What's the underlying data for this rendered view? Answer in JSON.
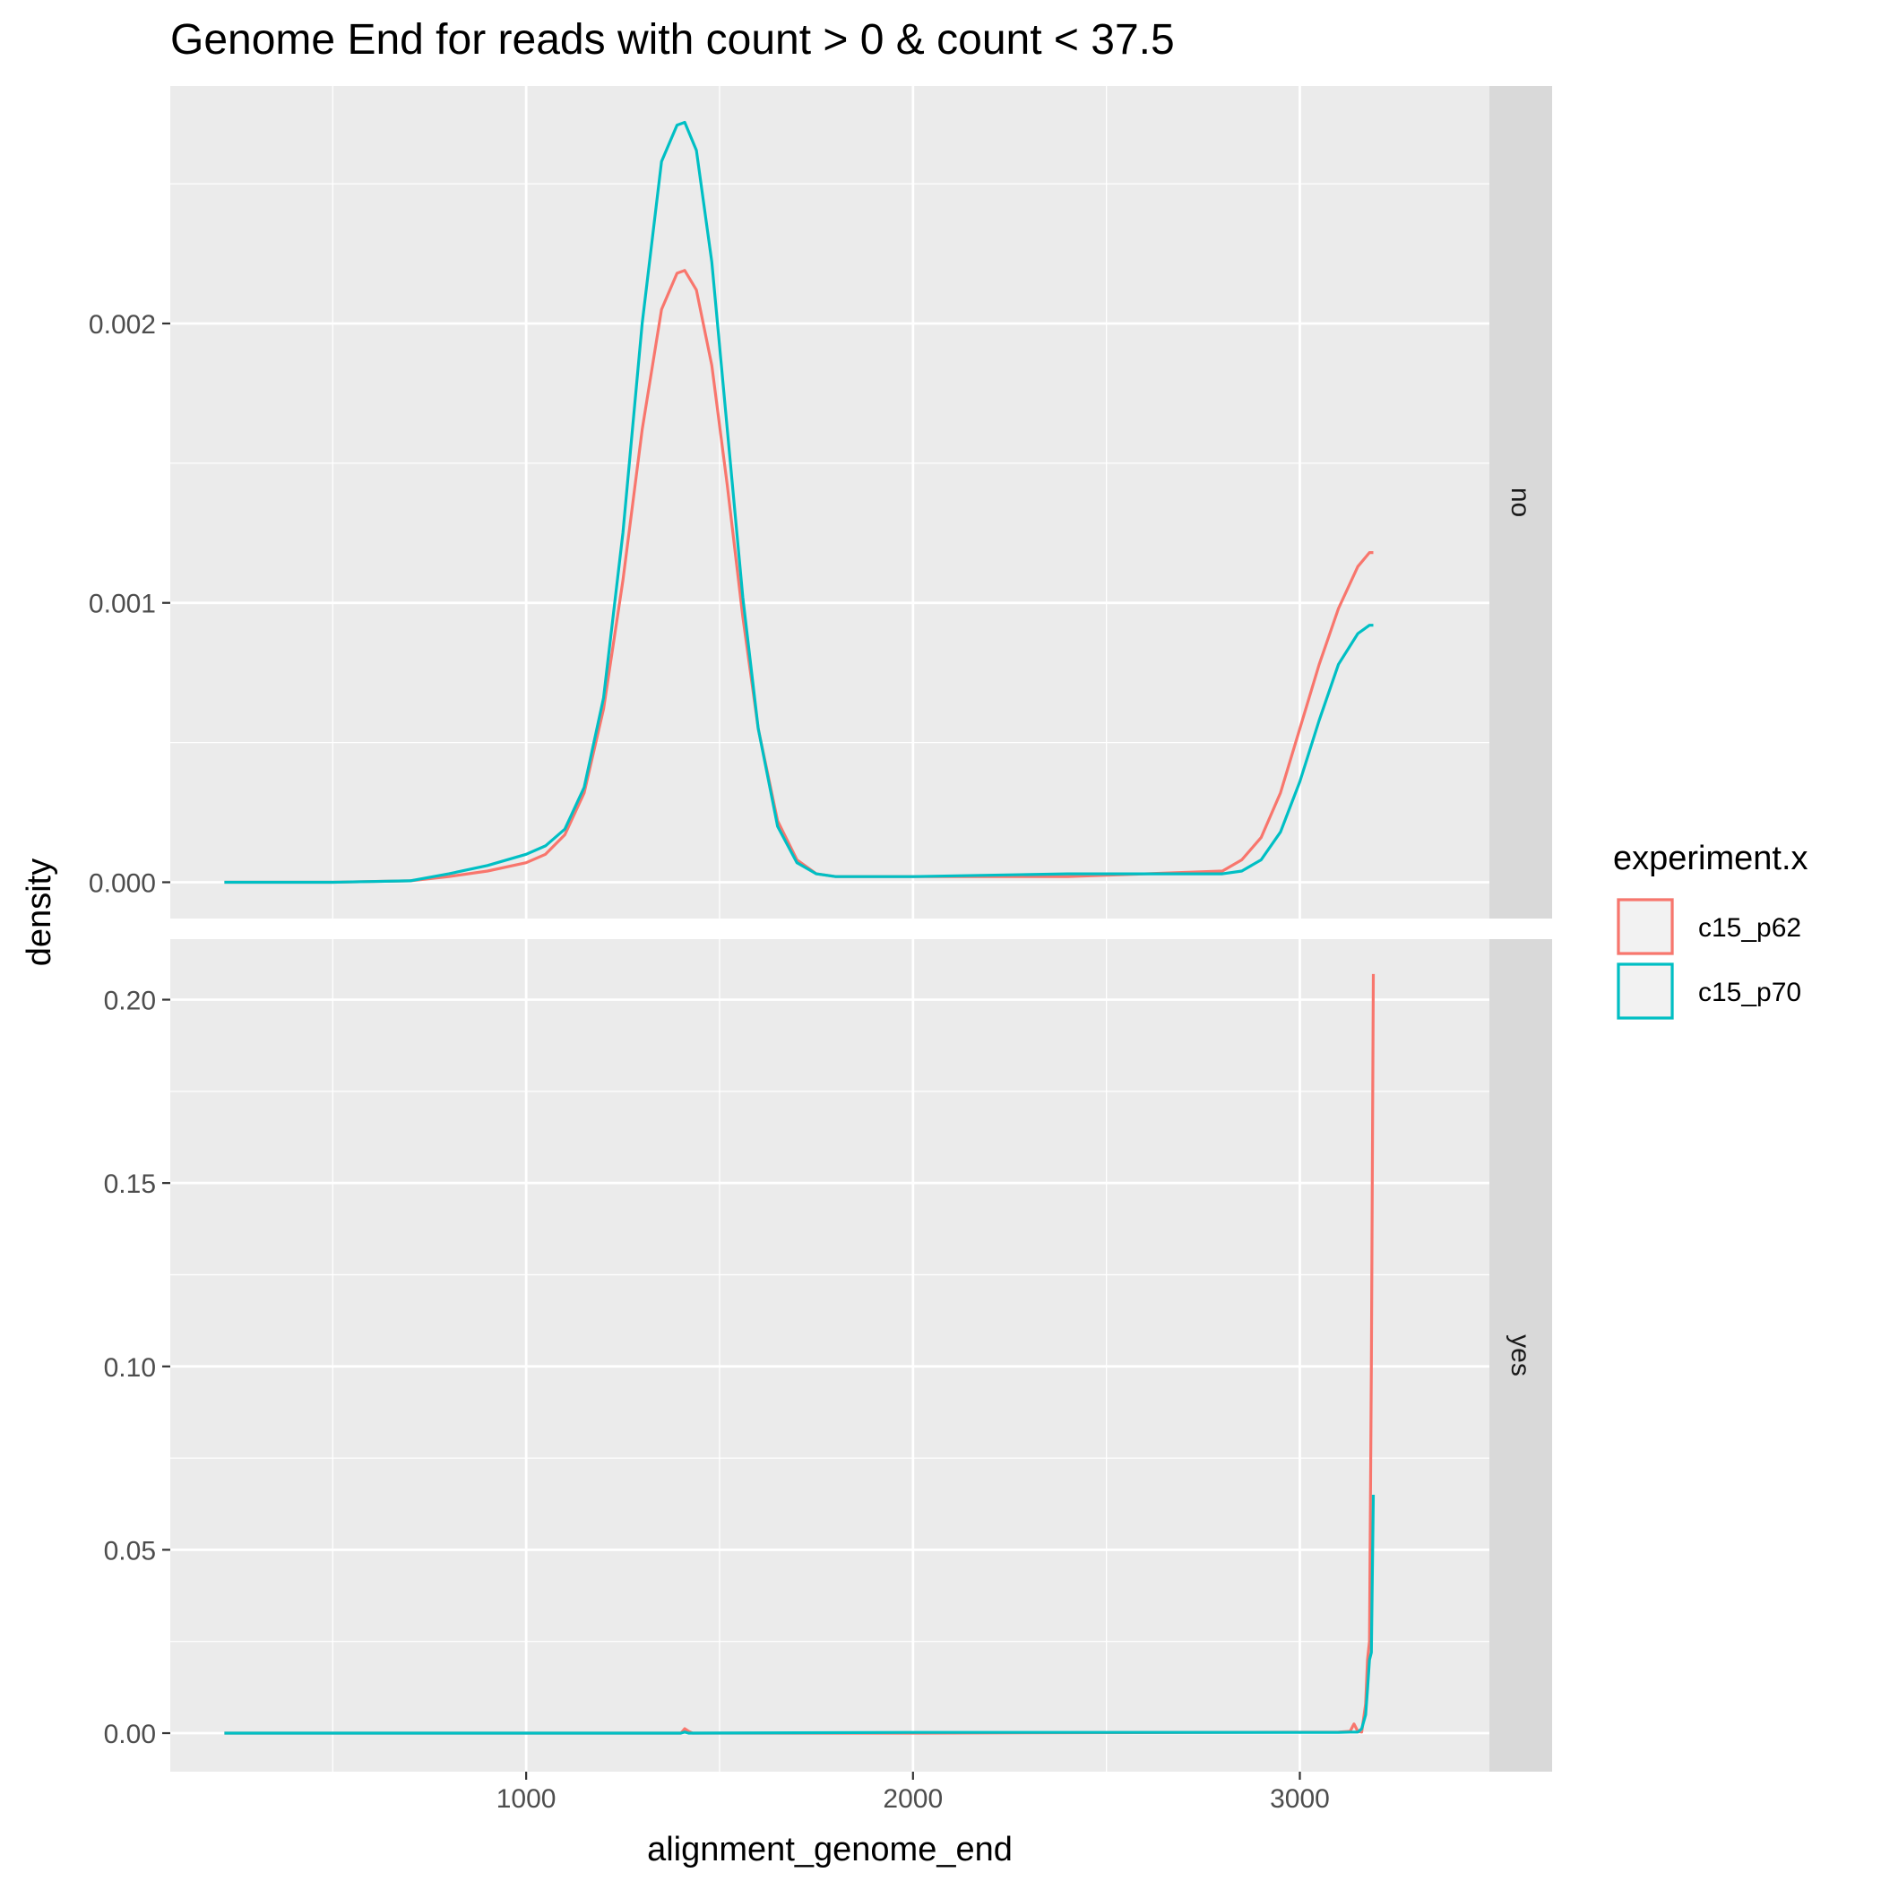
{
  "chart_data": {
    "type": "line",
    "title": "Genome End for reads with count > 0 & count < 37.5",
    "xlabel": "alignment_genome_end",
    "ylabel": "density",
    "xlim": [
      80,
      3490
    ],
    "x_ticks": [
      1000,
      2000,
      3000
    ],
    "x_tick_labels": [
      "1000",
      "2000",
      "3000"
    ],
    "grid": true,
    "legend": {
      "title": "experiment.x",
      "position": "right",
      "entries": [
        {
          "name": "c15_p62",
          "color": "#F8766D"
        },
        {
          "name": "c15_p70",
          "color": "#00BFC4"
        }
      ]
    },
    "panels": [
      {
        "facet": "no",
        "ylim": [
          -0.00013,
          0.00285
        ],
        "y_ticks": [
          0,
          0.001,
          0.002
        ],
        "y_tick_labels": [
          "0.000",
          "0.001",
          "0.002"
        ],
        "series": [
          {
            "name": "c15_p62",
            "color": "#F8766D",
            "x": [
              220,
              500,
              700,
              800,
              900,
              1000,
              1050,
              1100,
              1150,
              1200,
              1250,
              1300,
              1350,
              1390,
              1410,
              1440,
              1480,
              1520,
              1560,
              1600,
              1650,
              1700,
              1750,
              1800,
              2000,
              2400,
              2800,
              2850,
              2900,
              2950,
              3000,
              3050,
              3100,
              3150,
              3180,
              3190
            ],
            "y": [
              0,
              0,
              5e-06,
              2e-05,
              4e-05,
              7e-05,
              0.0001,
              0.00017,
              0.00032,
              0.00062,
              0.00108,
              0.00162,
              0.00205,
              0.00218,
              0.00219,
              0.00212,
              0.00185,
              0.00142,
              0.00095,
              0.00055,
              0.00022,
              8e-05,
              3e-05,
              2e-05,
              2e-05,
              2e-05,
              4e-05,
              8e-05,
              0.00016,
              0.00032,
              0.00055,
              0.00078,
              0.00098,
              0.00113,
              0.00118,
              0.00118
            ]
          },
          {
            "name": "c15_p70",
            "color": "#00BFC4",
            "x": [
              220,
              500,
              700,
              800,
              900,
              1000,
              1050,
              1100,
              1150,
              1200,
              1250,
              1300,
              1350,
              1390,
              1410,
              1440,
              1480,
              1520,
              1560,
              1600,
              1650,
              1700,
              1750,
              1800,
              2000,
              2400,
              2800,
              2850,
              2900,
              2950,
              3000,
              3050,
              3100,
              3150,
              3180,
              3190
            ],
            "y": [
              0,
              0,
              5e-06,
              3e-05,
              6e-05,
              0.0001,
              0.00013,
              0.00019,
              0.00034,
              0.00066,
              0.00125,
              0.002,
              0.00258,
              0.00271,
              0.00272,
              0.00262,
              0.00222,
              0.00162,
              0.00102,
              0.00055,
              0.0002,
              7e-05,
              3e-05,
              2e-05,
              2e-05,
              3e-05,
              3e-05,
              4e-05,
              8e-05,
              0.00018,
              0.00036,
              0.00058,
              0.00078,
              0.00089,
              0.00092,
              0.00092
            ]
          }
        ]
      },
      {
        "facet": "yes",
        "ylim": [
          -0.0105,
          0.2165
        ],
        "y_ticks": [
          0,
          0.05,
          0.1,
          0.15,
          0.2
        ],
        "y_tick_labels": [
          "0.00",
          "0.05",
          "0.10",
          "0.15",
          "0.20"
        ],
        "series": [
          {
            "name": "c15_p62",
            "color": "#F8766D",
            "x": [
              220,
              1400,
              1410,
              1420,
              1430,
              2000,
              3100,
              3130,
              3140,
              3150,
              3160,
              3170,
              3175,
              3180,
              3185,
              3190
            ],
            "y": [
              0,
              0,
              0.0012,
              0.0005,
              0,
              0,
              0.0003,
              0.0005,
              0.0025,
              0.0005,
              0.0003,
              0.008,
              0.02,
              0.025,
              0.1,
              0.207
            ]
          },
          {
            "name": "c15_p70",
            "color": "#00BFC4",
            "x": [
              220,
              1400,
              1410,
              1420,
              2000,
              3100,
              3130,
              3140,
              3150,
              3160,
              3170,
              3175,
              3180,
              3185,
              3190
            ],
            "y": [
              0,
              0,
              0.0003,
              0,
              0.0002,
              0.0002,
              0.0003,
              0.0003,
              0.0003,
              0.0012,
              0.005,
              0.012,
              0.02,
              0.022,
              0.065
            ]
          }
        ]
      }
    ]
  }
}
